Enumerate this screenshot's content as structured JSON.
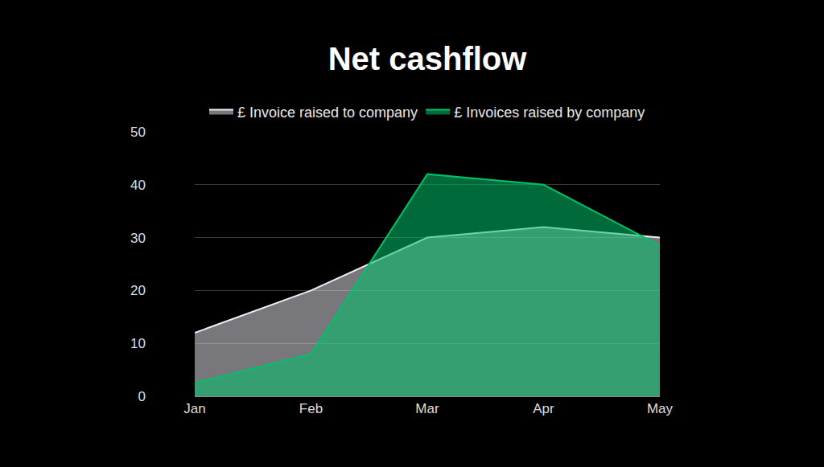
{
  "chart_data": {
    "type": "area",
    "title": "Net cashflow",
    "categories": [
      "Jan",
      "Feb",
      "Mar",
      "Apr",
      "May"
    ],
    "series": [
      {
        "name": "£ Invoice raised to company",
        "color": "#f0eef5",
        "values": [
          12,
          20,
          30,
          32,
          30
        ]
      },
      {
        "name": "£ Invoices raised by company",
        "color": "#00c16a",
        "values": [
          2.5,
          8,
          42,
          40,
          28.5
        ]
      }
    ],
    "ylim": [
      0,
      50
    ],
    "yticks": [
      0,
      10,
      20,
      30,
      40,
      50
    ],
    "grid": true,
    "legend": "top"
  }
}
